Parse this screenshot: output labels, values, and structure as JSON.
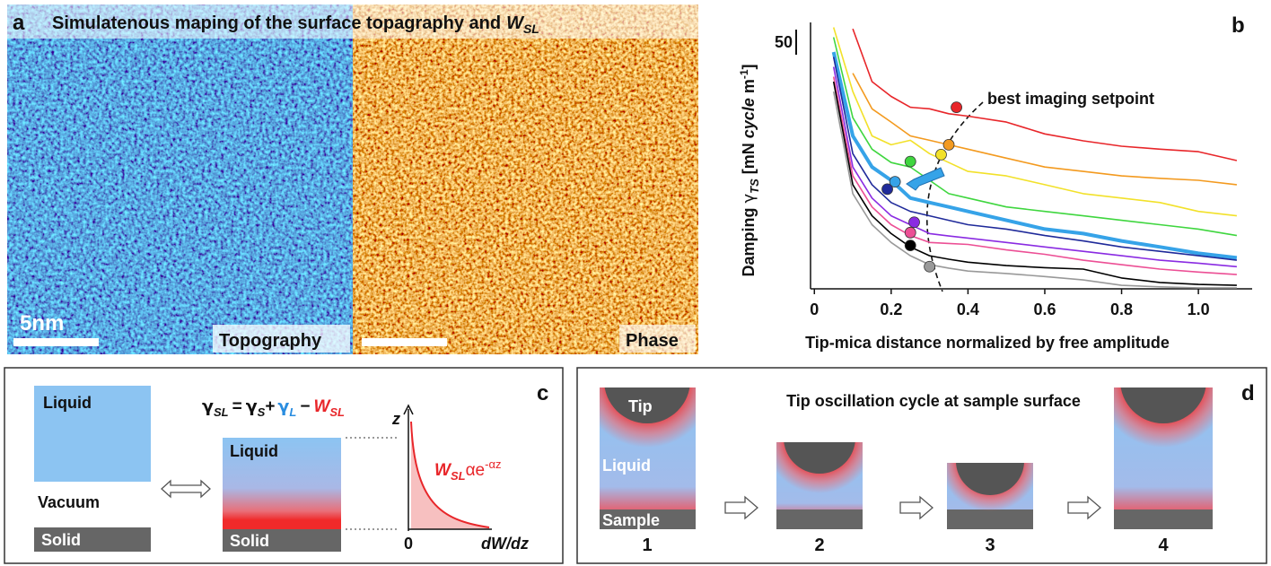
{
  "panel_a": {
    "label": "a",
    "title": "Simulatenous maping of the surface topagraphy and",
    "title_symbol": "W",
    "title_sub": "SL",
    "scale": "5nm",
    "left_label": "Topography",
    "right_label": "Phase"
  },
  "chart_data": {
    "type": "line",
    "panel_label": "b",
    "xlabel": "Tip-mica distance normalized by free amplitude",
    "ylabel": [
      "Damping ",
      "γ",
      "TS",
      " [mN ",
      "cycle",
      " m",
      "-1",
      "]"
    ],
    "annotation": "best imaging setpoint",
    "xlim": [
      -0.01,
      1.14
    ],
    "xticks": [
      0,
      0.2,
      0.4,
      0.6,
      0.8,
      {
        "value": 1.0,
        "label": "1.0"
      }
    ],
    "ylim": [
      0,
      54
    ],
    "yticks": [
      50
    ],
    "x": [
      0.05,
      0.1,
      0.15,
      0.2,
      0.25,
      0.3,
      0.35,
      0.4,
      0.5,
      0.6,
      0.7,
      0.8,
      0.9,
      1.0,
      1.1
    ],
    "series": [
      {
        "color": "#e8262a",
        "line_width": 1.6,
        "values": [
          null,
          52.7,
          42,
          39,
          36.8,
          36.5,
          35.5,
          35,
          33.8,
          31.4,
          30,
          28.9,
          28.3,
          27.8,
          26
        ],
        "setpoint": {
          "x": 0.37,
          "y": 36.8
        }
      },
      {
        "color": "#f39a1f",
        "line_width": 1.6,
        "values": [
          null,
          43.7,
          36.5,
          33.8,
          31,
          30.1,
          29.2,
          28.3,
          26.5,
          24.7,
          23.8,
          22.9,
          22.4,
          22,
          21.1
        ],
        "setpoint": {
          "x": 0.35,
          "y": 29.2
        }
      },
      {
        "color": "#f2e12a",
        "line_width": 1.6,
        "values": [
          53,
          40,
          31,
          29.2,
          30.1,
          27.4,
          25.6,
          23.8,
          22.9,
          21.1,
          19.3,
          18.4,
          17.5,
          15.7,
          14.8
        ],
        "setpoint": {
          "x": 0.33,
          "y": 27.2
        }
      },
      {
        "color": "#3fd63f",
        "line_width": 1.6,
        "values": [
          51,
          34.7,
          28.3,
          25.6,
          24.7,
          22,
          19.3,
          18.4,
          16.6,
          15.7,
          14.8,
          13.9,
          13,
          12.1,
          10.8
        ],
        "setpoint": {
          "x": 0.25,
          "y": 25.8
        }
      },
      {
        "color": "#36a3e8",
        "line_width": 4,
        "values": [
          48,
          31,
          24.7,
          22,
          18.4,
          17.5,
          16.6,
          15.7,
          13.9,
          12.1,
          11.2,
          9.7,
          8.5,
          7.2,
          6.3
        ],
        "setpoint": {
          "x": 0.21,
          "y": 21.7
        }
      },
      {
        "color": "#1f2a9a",
        "line_width": 1.6,
        "values": [
          47,
          27.4,
          21.1,
          17.5,
          15.7,
          14.8,
          13.9,
          13,
          12.1,
          10.8,
          9.7,
          8.5,
          7.6,
          6.7,
          5.8
        ],
        "setpoint": {
          "x": 0.19,
          "y": 20.2
        }
      },
      {
        "color": "#8a2be2",
        "line_width": 1.6,
        "values": [
          45,
          24.7,
          18.4,
          14.8,
          13,
          11.2,
          10.7,
          10.3,
          9.4,
          8.5,
          7.6,
          6.7,
          5.8,
          5.2,
          4.5
        ],
        "setpoint": {
          "x": 0.26,
          "y": 13.5
        }
      },
      {
        "color": "#ec4f95",
        "line_width": 1.6,
        "values": [
          43,
          22.9,
          16.6,
          13,
          10.8,
          9.4,
          9.2,
          9,
          7.9,
          7,
          5.8,
          4.9,
          4,
          3.4,
          2.9
        ],
        "setpoint": {
          "x": 0.25,
          "y": 11.4
        }
      },
      {
        "color": "#000000",
        "line_width": 1.6,
        "values": [
          42,
          21.1,
          14.8,
          11.2,
          8.5,
          6.7,
          6,
          5.4,
          4.7,
          4.3,
          4,
          2.2,
          1.3,
          0.9,
          0.7
        ],
        "setpoint": {
          "x": 0.25,
          "y": 8.8
        }
      },
      {
        "color": "#999999",
        "line_width": 1.6,
        "values": [
          40,
          19.3,
          13,
          9.4,
          6.7,
          4.9,
          4.2,
          3.6,
          3.1,
          2.5,
          1.8,
          0.7,
          0.4,
          0.2,
          0.2
        ],
        "setpoint": {
          "x": 0.3,
          "y": 4.5
        }
      }
    ]
  },
  "panel_c": {
    "label": "c",
    "liquid": "Liquid",
    "vacuum": "Vacuum",
    "solid": "Solid",
    "equation": [
      "γ",
      "SL",
      "=",
      "γ",
      "S",
      "+",
      "γ",
      "L",
      "−",
      "W",
      "SL"
    ],
    "liquid2": "Liquid",
    "solid2": "Solid",
    "z_axis": "z",
    "zero": "0",
    "x_axis": "dW/dz",
    "formula": [
      "W",
      "SL",
      "α",
      "e",
      "-αz"
    ]
  },
  "panel_d": {
    "label": "d",
    "title": "Tip oscillation cycle at sample surface",
    "tip": "Tip",
    "liquid": "Liquid",
    "sample": "Sample",
    "steps": [
      "1",
      "2",
      "3",
      "4"
    ]
  }
}
